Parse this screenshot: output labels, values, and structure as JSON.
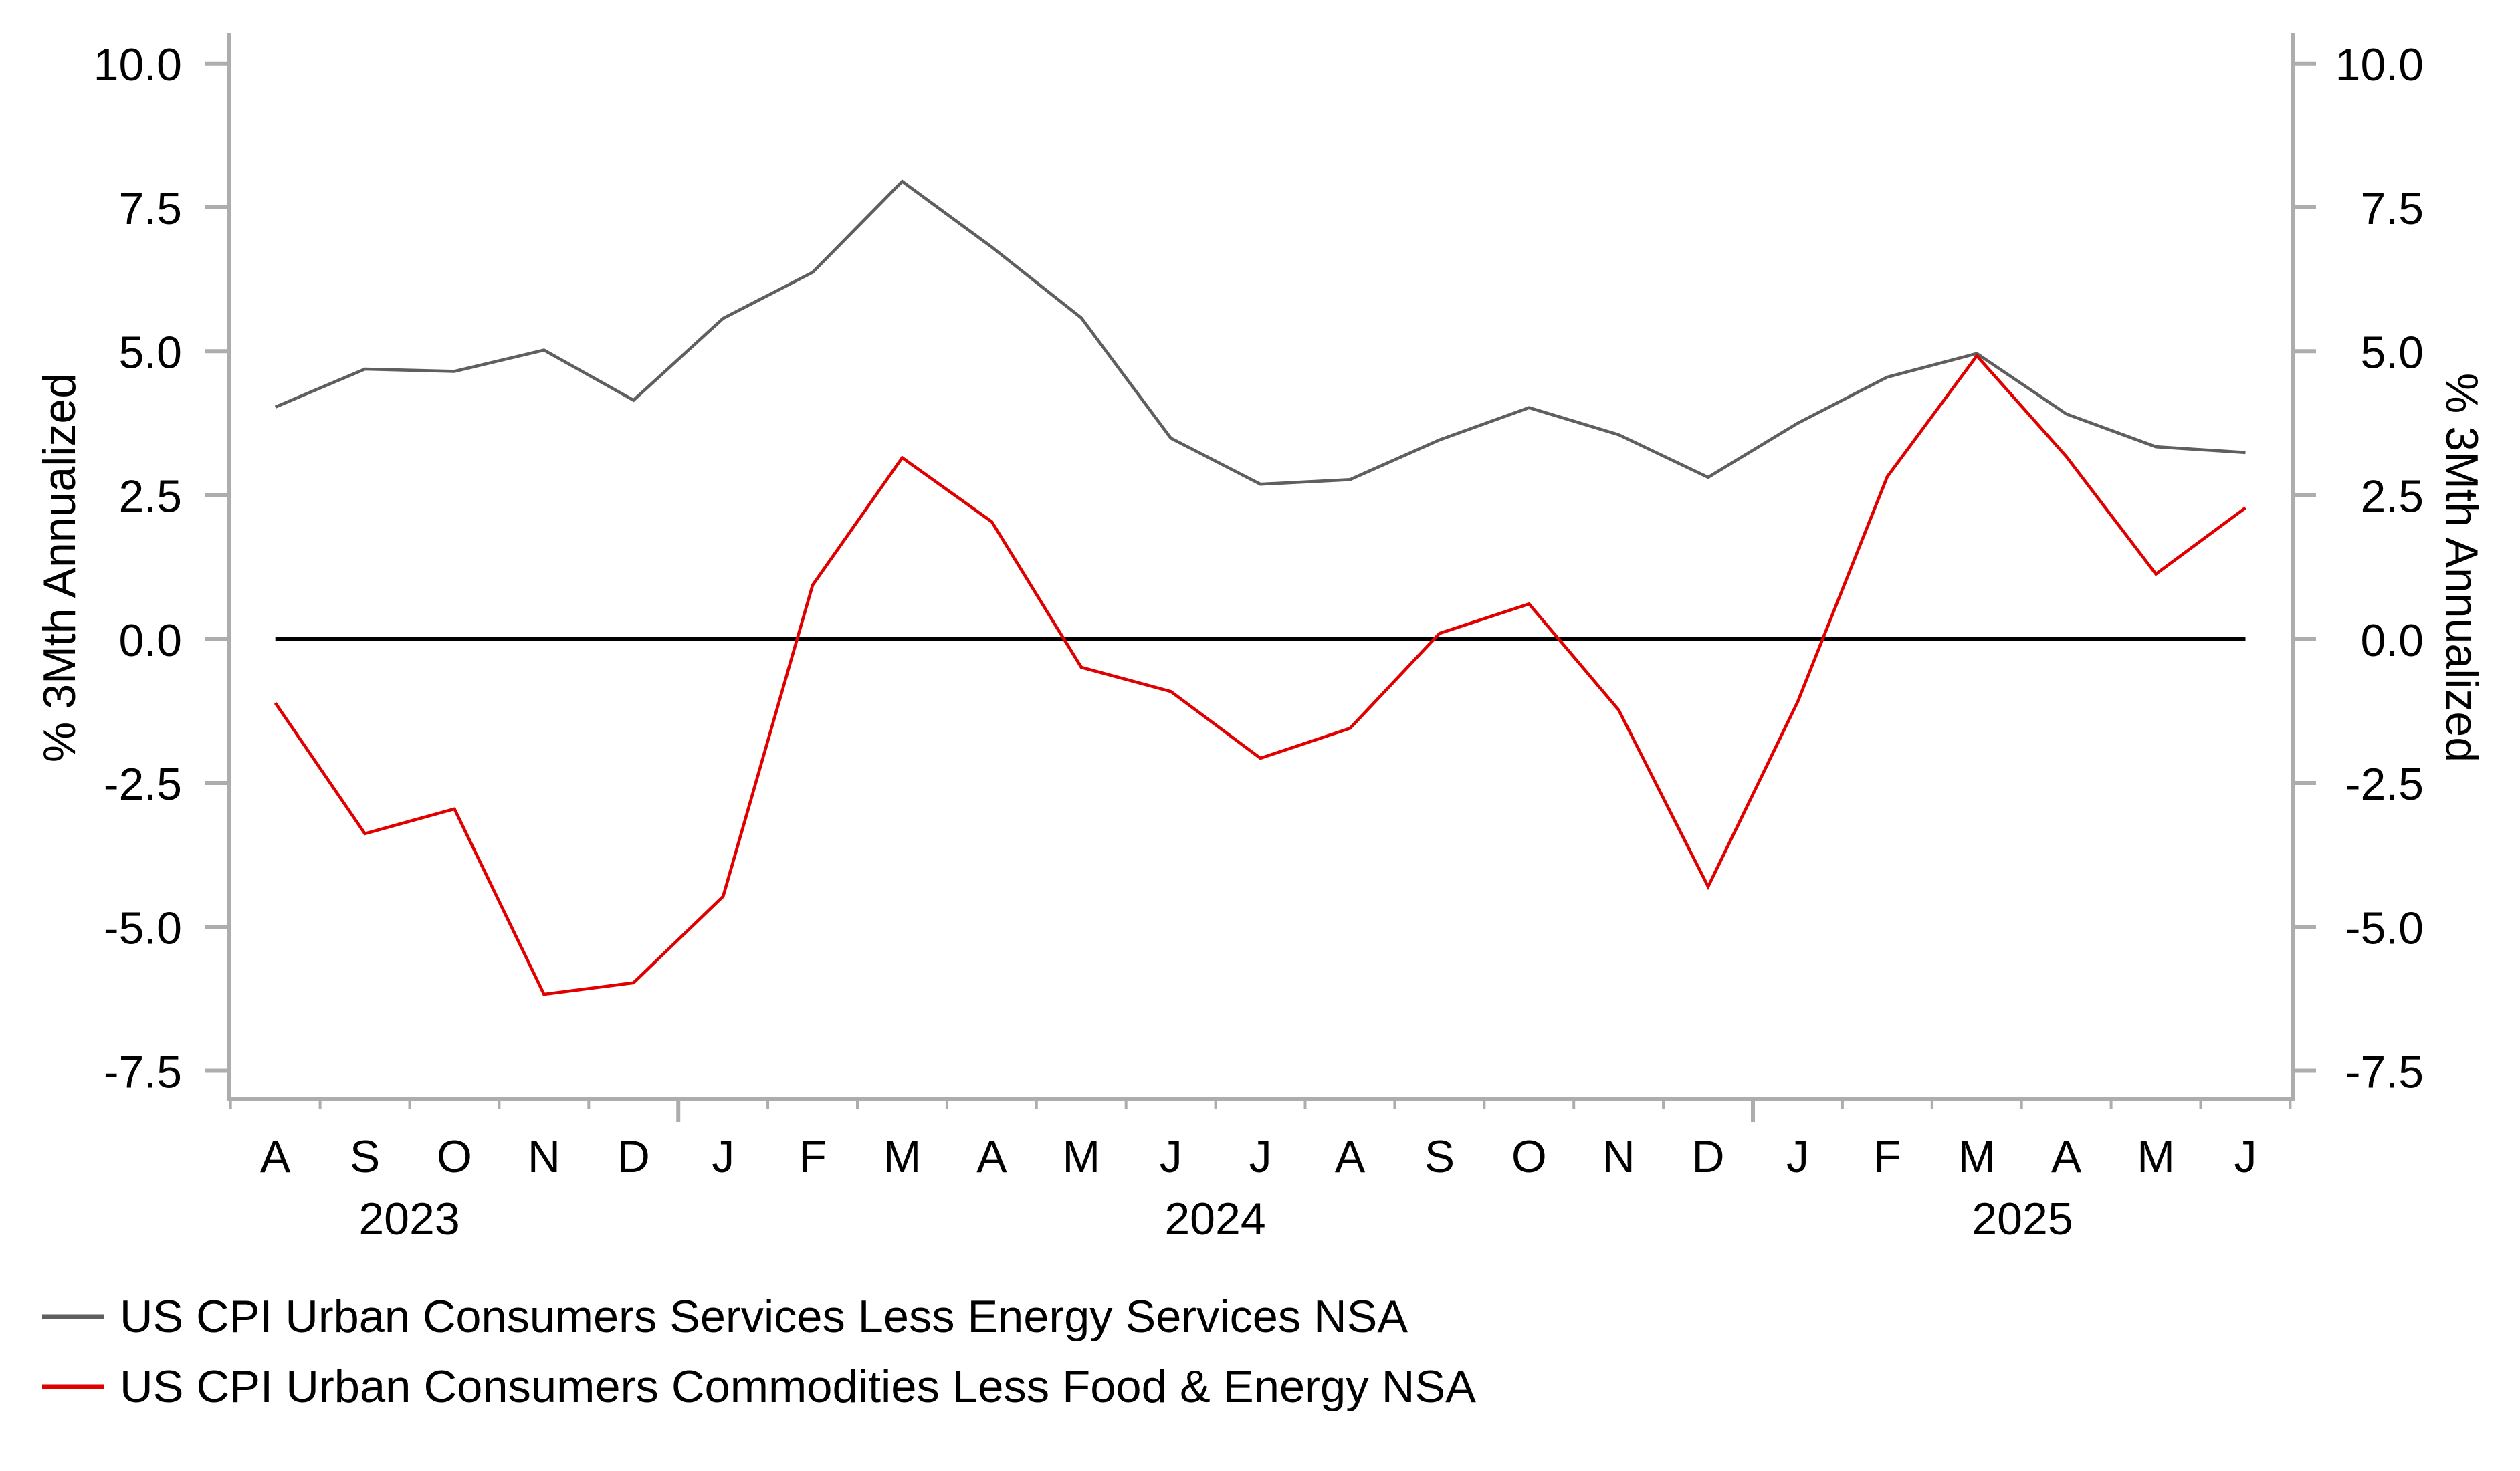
{
  "chart_data": {
    "type": "line",
    "title": "",
    "xlabel": "",
    "ylabel_left": "% 3Mth Annualized",
    "ylabel_right": "% 3Mth Annualized",
    "ylim": [
      -7.5,
      10.0
    ],
    "y_ticks": [
      10.0,
      7.5,
      5.0,
      2.5,
      0.0,
      -2.5,
      -5.0,
      -7.5
    ],
    "y_tick_labels": [
      "10.0",
      "7.5",
      "5.0",
      "2.5",
      "0.0",
      "-2.5",
      "-5.0",
      "-7.5"
    ],
    "reference_line": 0.0,
    "grid": false,
    "legend_position": "bottom-left",
    "x": [
      "A",
      "S",
      "O",
      "N",
      "D",
      "J",
      "F",
      "M",
      "A",
      "M",
      "J",
      "J",
      "A",
      "S",
      "O",
      "N",
      "D",
      "J",
      "F",
      "M",
      "A",
      "M",
      "J"
    ],
    "x_dates": [
      "2023-08",
      "2023-09",
      "2023-10",
      "2023-11",
      "2023-12",
      "2024-01",
      "2024-02",
      "2024-03",
      "2024-04",
      "2024-05",
      "2024-06",
      "2024-07",
      "2024-08",
      "2024-09",
      "2024-10",
      "2024-11",
      "2024-12",
      "2025-01",
      "2025-02",
      "2025-03",
      "2025-04",
      "2025-05",
      "2025-06"
    ],
    "years": [
      {
        "label": "2023",
        "first_index": 0,
        "last_index": 4
      },
      {
        "label": "2024",
        "first_index": 5,
        "last_index": 16
      },
      {
        "label": "2025",
        "first_index": 17,
        "last_index": 22
      }
    ],
    "series": [
      {
        "name": "US CPI Urban Consumers Services Less Energy Services NSA",
        "color": "#5f5f5f",
        "values": [
          4.03,
          4.69,
          4.65,
          5.02,
          4.15,
          5.57,
          6.37,
          7.95,
          6.81,
          5.58,
          3.49,
          2.69,
          2.77,
          3.46,
          4.02,
          3.55,
          2.81,
          3.75,
          4.55,
          4.96,
          3.91,
          3.34,
          3.24
        ]
      },
      {
        "name": "US CPI Urban Consumers Commodities Less Food & Energy NSA",
        "color": "#e00000",
        "values": [
          -1.11,
          -3.38,
          -2.95,
          -6.17,
          -5.97,
          -4.47,
          0.94,
          3.15,
          2.04,
          -0.49,
          -0.91,
          -2.07,
          -1.55,
          0.1,
          0.61,
          -1.23,
          -4.3,
          -1.09,
          2.82,
          4.92,
          3.17,
          1.13,
          2.28
        ]
      }
    ]
  }
}
